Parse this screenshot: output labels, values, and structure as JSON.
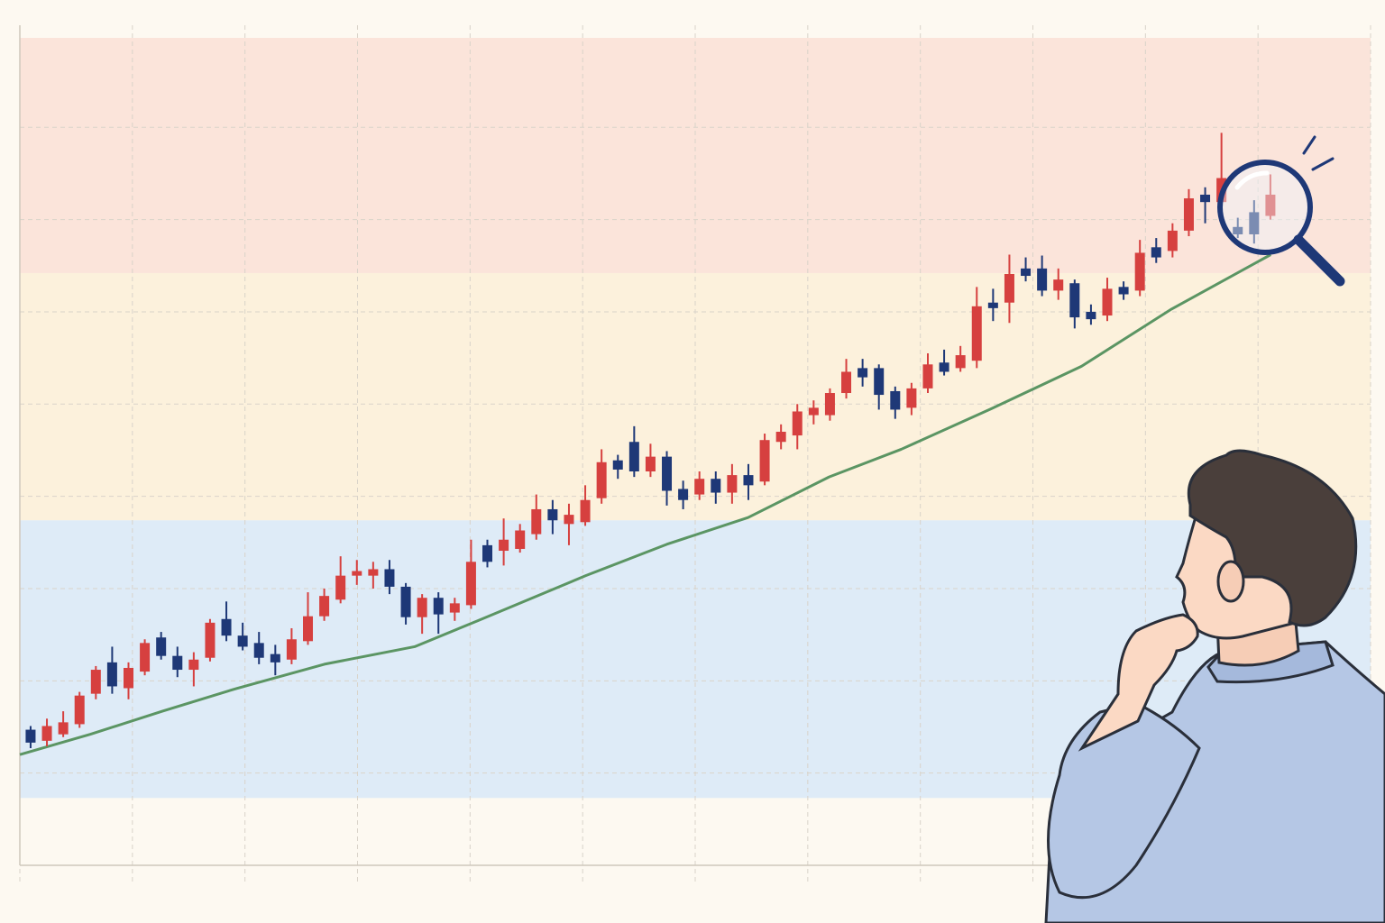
{
  "chart_data": {
    "type": "candlestick",
    "x": [
      0,
      1,
      2,
      3,
      4,
      5,
      6,
      7,
      8,
      9,
      10,
      11,
      12,
      13,
      14,
      15,
      16,
      17,
      18,
      19,
      20,
      21,
      22,
      23,
      24,
      25,
      26,
      27,
      28,
      29,
      30,
      31,
      32,
      33,
      34,
      35,
      36,
      37,
      38,
      39,
      40,
      41,
      42,
      43,
      44,
      45,
      46,
      47,
      48,
      49,
      50,
      51,
      52,
      53,
      54,
      55,
      56,
      57,
      58,
      59,
      60,
      61,
      62,
      63,
      64,
      65,
      66,
      67,
      68,
      69,
      70,
      71,
      72,
      73,
      74,
      75,
      76
    ],
    "open": [
      147,
      135,
      142,
      153,
      186,
      220,
      192,
      210,
      247,
      227,
      212,
      225,
      267,
      249,
      241,
      229,
      223,
      243,
      270,
      288,
      314,
      314,
      321,
      302,
      269,
      290,
      274,
      282,
      347,
      341,
      343,
      359,
      386,
      370,
      372,
      398,
      439,
      459,
      427,
      443,
      408,
      402,
      419,
      404,
      423,
      416,
      459,
      466,
      488,
      488,
      512,
      539,
      539,
      514,
      496,
      517,
      545,
      539,
      547,
      610,
      610,
      647,
      647,
      623,
      631,
      600,
      596,
      627,
      623,
      670,
      666,
      688,
      727,
      719,
      692,
      708,
      704
    ],
    "high": [
      151,
      159,
      167,
      188,
      216,
      237,
      220,
      245,
      253,
      237,
      231,
      267,
      286,
      263,
      253,
      239,
      257,
      296,
      300,
      335,
      331,
      329,
      331,
      306,
      294,
      296,
      290,
      353,
      353,
      376,
      370,
      402,
      396,
      392,
      412,
      451,
      445,
      476,
      457,
      449,
      417,
      427,
      427,
      435,
      435,
      468,
      478,
      500,
      504,
      517,
      549,
      549,
      543,
      519,
      523,
      555,
      559,
      563,
      627,
      625,
      662,
      659,
      661,
      647,
      635,
      608,
      637,
      633,
      678,
      680,
      696,
      733,
      735,
      794,
      702,
      721,
      749
    ],
    "low": [
      127,
      129,
      139,
      149,
      180,
      186,
      180,
      206,
      223,
      204,
      194,
      221,
      243,
      233,
      218,
      206,
      218,
      239,
      265,
      284,
      304,
      300,
      294,
      261,
      251,
      251,
      265,
      278,
      323,
      325,
      339,
      353,
      359,
      347,
      368,
      392,
      419,
      421,
      421,
      390,
      386,
      396,
      392,
      392,
      396,
      412,
      451,
      451,
      478,
      482,
      506,
      519,
      494,
      484,
      488,
      512,
      531,
      535,
      539,
      590,
      588,
      633,
      617,
      613,
      582,
      586,
      590,
      613,
      617,
      653,
      659,
      682,
      696,
      698,
      680,
      674,
      700
    ],
    "close": [
      133,
      151,
      155,
      184,
      212,
      194,
      214,
      241,
      227,
      212,
      223,
      263,
      249,
      237,
      225,
      220,
      245,
      270,
      292,
      314,
      319,
      321,
      302,
      269,
      290,
      272,
      284,
      329,
      329,
      353,
      363,
      386,
      374,
      380,
      396,
      437,
      429,
      427,
      443,
      406,
      396,
      419,
      404,
      423,
      412,
      461,
      470,
      492,
      496,
      512,
      535,
      529,
      510,
      494,
      517,
      543,
      535,
      553,
      606,
      604,
      641,
      639,
      623,
      635,
      594,
      592,
      625,
      619,
      664,
      659,
      688,
      723,
      719,
      745,
      684,
      684,
      727
    ],
    "up_color": "#d6403f",
    "down_color": "#1e3877",
    "overlay": {
      "color": "#5b9563",
      "x": [
        -0.66,
        3.65,
        8.07,
        12.49,
        18.01,
        23.54,
        27.4,
        34.03,
        39.0,
        43.98,
        48.95,
        53.37,
        58.9,
        64.42,
        69.94,
        76.02
      ],
      "values": [
        120,
        142,
        167,
        191,
        218,
        237,
        265,
        314,
        348,
        377,
        421,
        451,
        495,
        541,
        603,
        662
      ]
    },
    "zones": [
      {
        "from": 642,
        "to": 897,
        "color": "#fbe4da"
      },
      {
        "from": 374,
        "to": 642,
        "color": "#fcf1dc"
      },
      {
        "from": 73,
        "to": 374,
        "color": "#deebf7"
      }
    ],
    "xlim": [
      -0.66,
      82.14
    ],
    "xticks": [
      -0.66,
      6.24,
      13.14,
      20.04,
      26.94,
      33.84,
      40.74,
      47.64,
      54.54,
      61.44,
      68.34,
      75.24,
      82.14
    ],
    "ylim": [
      0,
      897
    ],
    "yticks": [
      0,
      100,
      200,
      300,
      400,
      500,
      600,
      700,
      800
    ],
    "grid": true
  }
}
